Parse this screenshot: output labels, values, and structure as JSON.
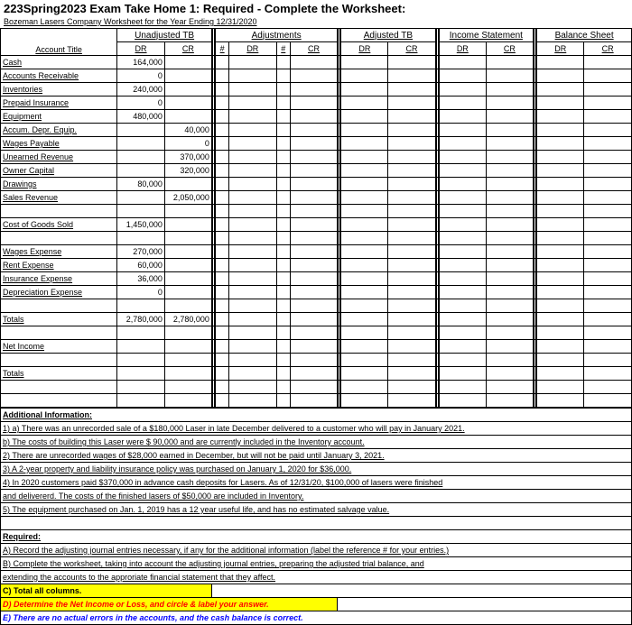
{
  "title": "223Spring2023 Exam Take Home 1: Required - Complete the Worksheet:",
  "subtitle": "Bozeman Lasers Company Worksheet for the Year Ending 12/31/2020",
  "headers": {
    "acct": "Account Title",
    "groups": [
      "Unadjusted TB",
      "Adjustments",
      "Adjusted TB",
      "Income Statement",
      "Balance Sheet"
    ],
    "dr": "DR",
    "cr": "CR",
    "hash": "#"
  },
  "rows": [
    {
      "acct": "Cash",
      "u_dr": "164,000",
      "u_cr": ""
    },
    {
      "acct": "Accounts Receivable",
      "u_dr": "0",
      "u_cr": ""
    },
    {
      "acct": "Inventories",
      "u_dr": "240,000",
      "u_cr": ""
    },
    {
      "acct": "Prepaid Insurance",
      "u_dr": "0",
      "u_cr": ""
    },
    {
      "acct": "Equipment",
      "u_dr": "480,000",
      "u_cr": ""
    },
    {
      "acct": "Accum. Depr. Equip.",
      "u_dr": "",
      "u_cr": "40,000"
    },
    {
      "acct": "Wages Payable",
      "u_dr": "",
      "u_cr": "0"
    },
    {
      "acct": "Unearned Revenue",
      "u_dr": "",
      "u_cr": "370,000"
    },
    {
      "acct": "Owner Capital",
      "u_dr": "",
      "u_cr": "320,000"
    },
    {
      "acct": "Drawings",
      "u_dr": "80,000",
      "u_cr": ""
    },
    {
      "acct": "Sales Revenue",
      "u_dr": "",
      "u_cr": "2,050,000"
    },
    {
      "acct": "",
      "u_dr": "",
      "u_cr": ""
    },
    {
      "acct": "Cost of Goods Sold",
      "u_dr": "1,450,000",
      "u_cr": ""
    },
    {
      "acct": "",
      "u_dr": "",
      "u_cr": ""
    },
    {
      "acct": "Wages Expense",
      "u_dr": "270,000",
      "u_cr": ""
    },
    {
      "acct": "Rent Expense",
      "u_dr": "60,000",
      "u_cr": ""
    },
    {
      "acct": "Insurance Expense",
      "u_dr": "36,000",
      "u_cr": ""
    },
    {
      "acct": "Depreciation Expense",
      "u_dr": "0",
      "u_cr": ""
    },
    {
      "acct": "",
      "u_dr": "",
      "u_cr": ""
    },
    {
      "acct": "Totals",
      "u_dr": "2,780,000",
      "u_cr": "2,780,000"
    },
    {
      "acct": "",
      "u_dr": "",
      "u_cr": ""
    },
    {
      "acct": "Net Income",
      "u_dr": "",
      "u_cr": ""
    },
    {
      "acct": "",
      "u_dr": "",
      "u_cr": ""
    },
    {
      "acct": "Totals",
      "u_dr": "",
      "u_cr": ""
    },
    {
      "acct": "",
      "u_dr": "",
      "u_cr": ""
    },
    {
      "acct": "",
      "u_dr": "",
      "u_cr": ""
    }
  ],
  "info": {
    "header": "Additional Information:",
    "lines": [
      "1) a) There was an unre­corded sale of a $180,000 Laser in late December delivered to a customer who will pay in January 2021.",
      "    b) The costs of building this Laser were $ 90,000 and are currently included in the Inventory account.",
      "2) There are unrecorded wages of $28,000 earned in December, but will not be paid until January 3, 2021.",
      "3) A 2-year property and liability insurance policy was purchased on January 1, 2020 for $36,000.",
      "4) In 2020 customers paid $370,000 in advance cash deposits for Lasers. As of 12/31/20, $100,000 of lasers were finished",
      "and delivererd.    The costs of the finished lasers of $50,000 are included in Inventory.",
      "5) The equipment purchased on Jan. 1, 2019 has a 12 year useful life, and has no estimated salvage value."
    ],
    "req_header": "Required:",
    "req_lines": [
      "A) Record the adjusting journal entries necessary, if any for the additional information (label the reference # for your entries.)",
      "B) Complete the worksheet, taking into account the adjusting journal entries, preparing the adjusted trial balance, and",
      "     extending the accounts to the approriate financial statement that they affect."
    ],
    "req_c": "C) Total all columns.",
    "req_d": "D) Determine the Net Income or Loss, and circle & label your answer.",
    "req_e": "E) There are no actual errors in the accounts, and the cash balance is correct."
  }
}
